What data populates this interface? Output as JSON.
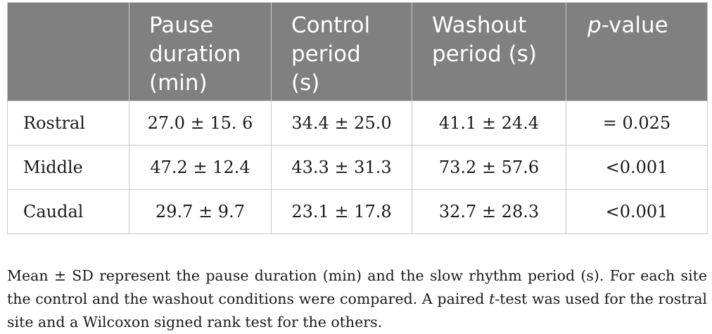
{
  "table": {
    "headers": {
      "site": "",
      "pause_duration": [
        "Pause",
        "duration",
        "(min)"
      ],
      "control_period": [
        "Control",
        "period",
        "(s)"
      ],
      "washout_period": [
        "Washout",
        "period (s)"
      ],
      "p_value_italic": "p",
      "p_value_rest": "-value"
    },
    "rows": [
      {
        "site": "Rostral",
        "pause": "27.0 ± 15. 6",
        "control": "34.4 ± 25.0",
        "washout": "41.1 ± 24.4",
        "p": "= 0.025"
      },
      {
        "site": "Middle",
        "pause": "47.2 ± 12.4",
        "control": "43.3 ± 31.3",
        "washout": "73.2 ± 57.6",
        "p": "<0.001"
      },
      {
        "site": "Caudal",
        "pause": "29.7 ± 9.7",
        "control": "23.1 ± 17.8",
        "washout": "32.7 ± 28.3",
        "p": "<0.001"
      }
    ]
  },
  "caption": {
    "part1": "Mean ± SD represent the pause duration (min) and the slow rhythm period (s). For each site the control and the washout conditions were compared. A paired ",
    "t_italic": "t",
    "part2": "-test was used for the rostral site and a Wilcoxon signed rank test for the others."
  },
  "colors": {
    "header_background": "#808080",
    "header_text": "#ffffff",
    "border": "#c9c9c9",
    "body_text": "#1a1a1a"
  }
}
